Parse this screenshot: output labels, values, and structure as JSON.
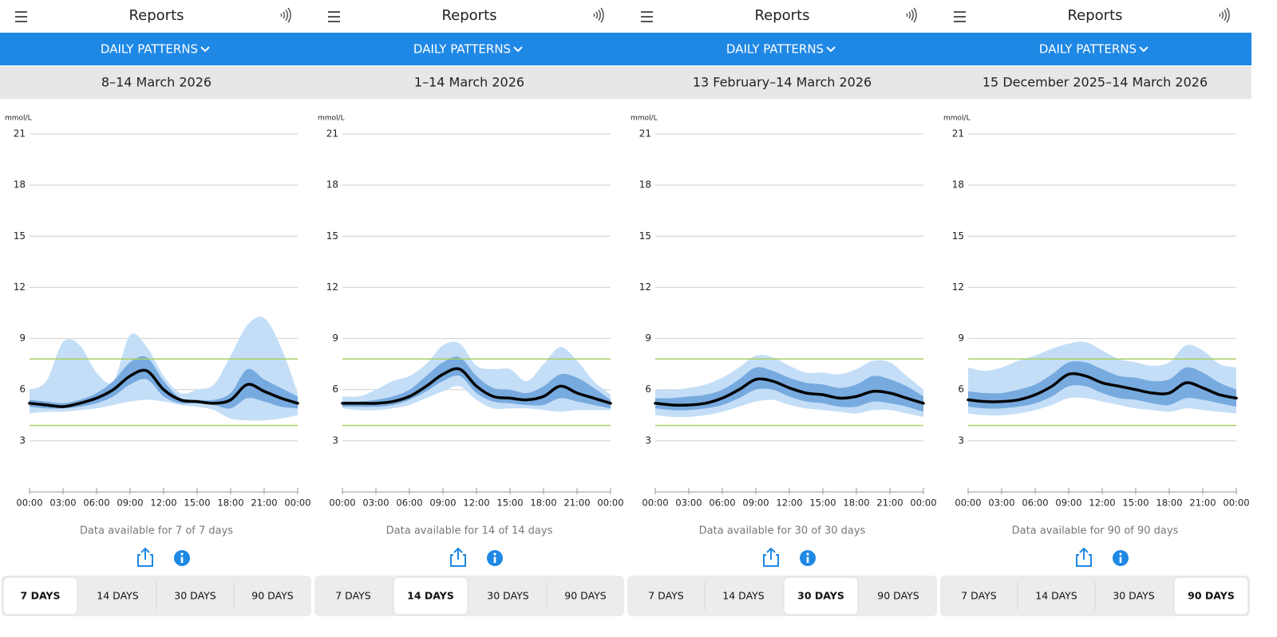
{
  "panels": [
    {
      "header": {
        "title": "Reports"
      },
      "menu": "DAILY PATTERNS",
      "date_range": "8–14 March 2026",
      "note": "Data available for 7 of 7 days",
      "tabs": [
        "7 DAYS",
        "14 DAYS",
        "30 DAYS",
        "90 DAYS"
      ],
      "selected_tab": 0
    },
    {
      "header": {
        "title": "Reports"
      },
      "menu": "DAILY PATTERNS",
      "date_range": "1–14 March 2026",
      "note": "Data available for 14 of 14 days",
      "tabs": [
        "7 DAYS",
        "14 DAYS",
        "30 DAYS",
        "90 DAYS"
      ],
      "selected_tab": 1
    },
    {
      "header": {
        "title": "Reports"
      },
      "menu": "DAILY PATTERNS",
      "date_range": "13 February–14 March 2026",
      "note": "Data available for 30 of 30 days",
      "tabs": [
        "7 DAYS",
        "14 DAYS",
        "30 DAYS",
        "90 DAYS"
      ],
      "selected_tab": 2
    },
    {
      "header": {
        "title": "Reports"
      },
      "menu": "DAILY PATTERNS",
      "date_range": "15 December 2025–14 March 2026",
      "note": "Data available for 90 of 90 days",
      "tabs": [
        "7 DAYS",
        "14 DAYS",
        "30 DAYS",
        "90 DAYS"
      ],
      "selected_tab": 3
    }
  ],
  "chart_data": [
    {
      "type": "percentile-area",
      "y_unit": "mmol/L",
      "x": [
        0,
        1.5,
        3,
        4.5,
        6,
        7.5,
        9,
        10.5,
        12,
        13.5,
        15,
        16.5,
        18,
        19.5,
        21,
        22.5,
        24
      ],
      "xlim": [
        0,
        24
      ],
      "xticks": [
        {
          "value": 0,
          "label": "00:00"
        },
        {
          "value": 3,
          "label": "03:00"
        },
        {
          "value": 6,
          "label": "06:00"
        },
        {
          "value": 9,
          "label": "09:00"
        },
        {
          "value": 12,
          "label": "12:00"
        },
        {
          "value": 15,
          "label": "15:00"
        },
        {
          "value": 18,
          "label": "18:00"
        },
        {
          "value": 21,
          "label": "21:00"
        },
        {
          "value": 24,
          "label": "00:00"
        }
      ],
      "ylim": [
        0,
        21
      ],
      "yticks": [
        3,
        6,
        9,
        12,
        15,
        18,
        21
      ],
      "grid": true,
      "target_range": [
        3.9,
        7.8
      ],
      "target_color": "#a8d060",
      "bands": [
        {
          "color": "#c4def7",
          "lower": [
            4.6,
            4.7,
            4.7,
            4.8,
            4.9,
            5.1,
            5.3,
            5.4,
            5.3,
            5.1,
            5.0,
            4.8,
            4.3,
            4.2,
            4.2,
            4.3,
            4.5
          ],
          "upper": [
            6.0,
            6.5,
            8.8,
            8.6,
            7.0,
            6.5,
            9.2,
            8.5,
            6.8,
            5.8,
            6.0,
            6.3,
            8.0,
            9.8,
            10.2,
            8.5,
            5.8
          ]
        },
        {
          "color": "#77aadf",
          "lower": [
            5.0,
            4.9,
            4.9,
            5.0,
            5.2,
            5.6,
            6.3,
            6.6,
            5.6,
            5.2,
            5.2,
            5.1,
            4.9,
            5.5,
            5.3,
            5.0,
            4.9
          ],
          "upper": [
            5.4,
            5.3,
            5.2,
            5.4,
            5.8,
            6.5,
            7.6,
            7.9,
            6.5,
            5.5,
            5.4,
            5.4,
            5.8,
            7.2,
            6.6,
            6.1,
            5.6
          ]
        }
      ],
      "median": {
        "color": "#000000",
        "values": [
          5.2,
          5.1,
          5.0,
          5.2,
          5.5,
          6.0,
          6.8,
          7.1,
          6.0,
          5.4,
          5.3,
          5.2,
          5.4,
          6.3,
          5.9,
          5.5,
          5.2
        ]
      }
    },
    {
      "type": "percentile-area",
      "y_unit": "mmol/L",
      "x": [
        0,
        1.5,
        3,
        4.5,
        6,
        7.5,
        9,
        10.5,
        12,
        13.5,
        15,
        16.5,
        18,
        19.5,
        21,
        22.5,
        24
      ],
      "xlim": [
        0,
        24
      ],
      "xticks": [
        {
          "value": 0,
          "label": "00:00"
        },
        {
          "value": 3,
          "label": "03:00"
        },
        {
          "value": 6,
          "label": "06:00"
        },
        {
          "value": 9,
          "label": "09:00"
        },
        {
          "value": 12,
          "label": "12:00"
        },
        {
          "value": 15,
          "label": "15:00"
        },
        {
          "value": 18,
          "label": "18:00"
        },
        {
          "value": 21,
          "label": "21:00"
        },
        {
          "value": 24,
          "label": "00:00"
        }
      ],
      "ylim": [
        0,
        21
      ],
      "yticks": [
        3,
        6,
        9,
        12,
        15,
        18,
        21
      ],
      "grid": true,
      "target_range": [
        3.9,
        7.8
      ],
      "target_color": "#a8d060",
      "bands": [
        {
          "color": "#c4def7",
          "lower": [
            4.9,
            4.8,
            4.8,
            4.9,
            5.1,
            5.5,
            5.9,
            6.2,
            5.4,
            4.9,
            4.9,
            4.9,
            4.8,
            4.7,
            4.8,
            4.8,
            4.8
          ],
          "upper": [
            5.6,
            5.6,
            6.0,
            6.5,
            6.8,
            7.5,
            8.6,
            8.7,
            7.4,
            7.2,
            7.2,
            6.5,
            7.5,
            8.5,
            7.7,
            6.5,
            5.7
          ]
        },
        {
          "color": "#77aadf",
          "lower": [
            5.0,
            5.0,
            5.0,
            5.1,
            5.4,
            5.9,
            6.5,
            6.8,
            5.8,
            5.3,
            5.2,
            5.1,
            5.1,
            5.5,
            5.3,
            5.1,
            4.9
          ],
          "upper": [
            5.3,
            5.3,
            5.4,
            5.6,
            6.0,
            6.8,
            7.6,
            7.9,
            6.8,
            6.1,
            6.0,
            5.8,
            6.2,
            6.9,
            6.7,
            6.1,
            5.4
          ]
        }
      ],
      "median": {
        "color": "#000000",
        "values": [
          5.2,
          5.2,
          5.2,
          5.3,
          5.6,
          6.2,
          6.9,
          7.2,
          6.2,
          5.6,
          5.5,
          5.4,
          5.6,
          6.2,
          5.8,
          5.5,
          5.2
        ]
      }
    },
    {
      "type": "percentile-area",
      "y_unit": "mmol/L",
      "x": [
        0,
        1.5,
        3,
        4.5,
        6,
        7.5,
        9,
        10.5,
        12,
        13.5,
        15,
        16.5,
        18,
        19.5,
        21,
        22.5,
        24
      ],
      "xlim": [
        0,
        24
      ],
      "xticks": [
        {
          "value": 0,
          "label": "00:00"
        },
        {
          "value": 3,
          "label": "03:00"
        },
        {
          "value": 6,
          "label": "06:00"
        },
        {
          "value": 9,
          "label": "09:00"
        },
        {
          "value": 12,
          "label": "12:00"
        },
        {
          "value": 15,
          "label": "15:00"
        },
        {
          "value": 18,
          "label": "18:00"
        },
        {
          "value": 21,
          "label": "21:00"
        },
        {
          "value": 24,
          "label": "00:00"
        }
      ],
      "ylim": [
        0,
        21
      ],
      "yticks": [
        3,
        6,
        9,
        12,
        15,
        18,
        21
      ],
      "grid": true,
      "target_range": [
        3.9,
        7.8
      ],
      "target_color": "#a8d060",
      "bands": [
        {
          "color": "#c4def7",
          "lower": [
            4.5,
            4.4,
            4.4,
            4.5,
            4.7,
            5.0,
            5.3,
            5.4,
            5.1,
            4.9,
            4.8,
            4.7,
            4.6,
            4.8,
            4.8,
            4.6,
            4.4
          ],
          "upper": [
            6.0,
            6.0,
            6.1,
            6.3,
            6.7,
            7.3,
            8.0,
            7.9,
            7.4,
            7.0,
            7.0,
            6.9,
            7.2,
            7.7,
            7.6,
            6.8,
            6.0
          ]
        },
        {
          "color": "#77aadf",
          "lower": [
            4.9,
            4.8,
            4.8,
            4.9,
            5.1,
            5.5,
            6.0,
            6.0,
            5.6,
            5.3,
            5.2,
            5.0,
            5.0,
            5.3,
            5.2,
            5.0,
            4.7
          ],
          "upper": [
            5.5,
            5.5,
            5.6,
            5.7,
            6.0,
            6.6,
            7.3,
            7.1,
            6.7,
            6.4,
            6.3,
            6.1,
            6.3,
            6.8,
            6.6,
            6.2,
            5.6
          ]
        }
      ],
      "median": {
        "color": "#000000",
        "values": [
          5.2,
          5.1,
          5.1,
          5.2,
          5.5,
          6.0,
          6.6,
          6.5,
          6.1,
          5.8,
          5.7,
          5.5,
          5.6,
          5.9,
          5.8,
          5.5,
          5.2
        ]
      }
    },
    {
      "type": "percentile-area",
      "y_unit": "mmol/L",
      "x": [
        0,
        1.5,
        3,
        4.5,
        6,
        7.5,
        9,
        10.5,
        12,
        13.5,
        15,
        16.5,
        18,
        19.5,
        21,
        22.5,
        24
      ],
      "xlim": [
        0,
        24
      ],
      "xticks": [
        {
          "value": 0,
          "label": "00:00"
        },
        {
          "value": 3,
          "label": "03:00"
        },
        {
          "value": 6,
          "label": "06:00"
        },
        {
          "value": 9,
          "label": "09:00"
        },
        {
          "value": 12,
          "label": "12:00"
        },
        {
          "value": 15,
          "label": "15:00"
        },
        {
          "value": 18,
          "label": "18:00"
        },
        {
          "value": 21,
          "label": "21:00"
        },
        {
          "value": 24,
          "label": "00:00"
        }
      ],
      "ylim": [
        0,
        21
      ],
      "yticks": [
        3,
        6,
        9,
        12,
        15,
        18,
        21
      ],
      "grid": true,
      "target_range": [
        3.9,
        7.8
      ],
      "target_color": "#a8d060",
      "bands": [
        {
          "color": "#c4def7",
          "lower": [
            4.6,
            4.5,
            4.5,
            4.6,
            4.8,
            5.1,
            5.5,
            5.5,
            5.3,
            5.1,
            4.9,
            4.8,
            4.7,
            4.9,
            4.8,
            4.7,
            4.6
          ],
          "upper": [
            7.3,
            7.1,
            7.3,
            7.7,
            8.0,
            8.4,
            8.7,
            8.8,
            8.3,
            7.8,
            7.6,
            7.4,
            7.6,
            8.6,
            8.3,
            7.5,
            7.3
          ]
        },
        {
          "color": "#77aadf",
          "lower": [
            5.0,
            4.9,
            4.9,
            5.0,
            5.2,
            5.6,
            6.2,
            6.2,
            5.8,
            5.5,
            5.4,
            5.2,
            5.1,
            5.5,
            5.4,
            5.2,
            5.0
          ],
          "upper": [
            5.9,
            5.8,
            5.8,
            6.0,
            6.3,
            6.9,
            7.6,
            7.6,
            7.2,
            6.8,
            6.7,
            6.5,
            6.6,
            7.3,
            7.0,
            6.4,
            6.0
          ]
        }
      ],
      "median": {
        "color": "#000000",
        "values": [
          5.4,
          5.3,
          5.3,
          5.4,
          5.7,
          6.2,
          6.9,
          6.8,
          6.4,
          6.2,
          6.0,
          5.8,
          5.8,
          6.4,
          6.1,
          5.7,
          5.5
        ]
      }
    }
  ]
}
